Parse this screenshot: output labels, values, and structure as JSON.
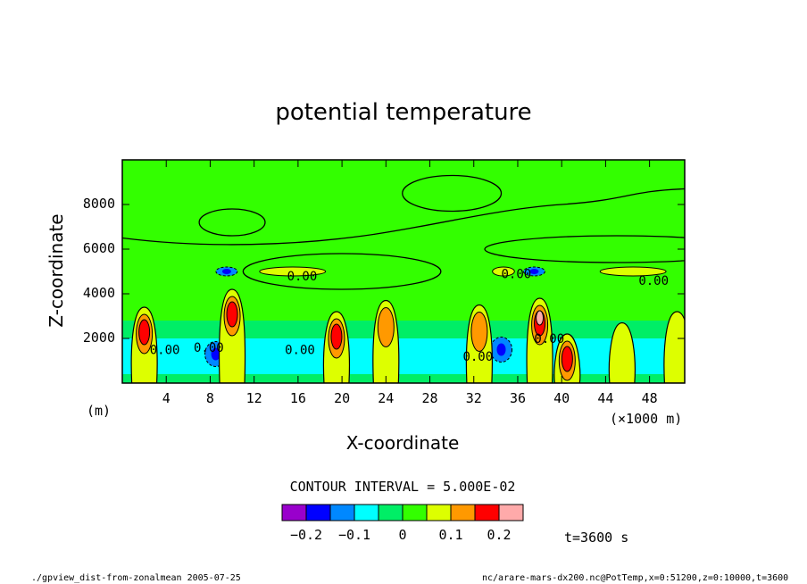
{
  "colors": {
    "background": "#ffffff",
    "field": "#33ff00",
    "contour": "#000000",
    "scale": [
      "#9900cc",
      "#0000ff",
      "#0088ff",
      "#00ffff",
      "#00ee66",
      "#33ff00",
      "#ddff00",
      "#ff9900",
      "#ff0000",
      "#ffaaaa"
    ]
  },
  "labels": {
    "title": "potential temperature",
    "xlabel": "X-coordinate",
    "ylabel": "Z-coordinate",
    "y_unit": "(m)",
    "x_unit": "(×1000 m)",
    "contour_interval": "CONTOUR INTERVAL = 5.000E-02",
    "time": "t=3600 s",
    "footer_left": "./gpview_dist-from-zonalmean  2005-07-25",
    "footer_right": "nc/arare-mars-dx200.nc@PotTemp,x=0:51200,z=0:10000,t=3600"
  },
  "chart_data": {
    "type": "heatmap",
    "title": "potential temperature",
    "xlabel": "X-coordinate",
    "ylabel": "Z-coordinate",
    "x_unit": "(×1000 m)",
    "y_unit": "(m)",
    "xlim": [
      0,
      51.2
    ],
    "ylim": [
      0,
      10000
    ],
    "x_ticks": [
      4,
      8,
      12,
      16,
      20,
      24,
      28,
      32,
      36,
      40,
      44,
      48
    ],
    "y_ticks": [
      2000,
      4000,
      6000,
      8000
    ],
    "contour_interval": 0.05,
    "contour_labels": [
      {
        "text": "0.00",
        "x": 2.5,
        "z": 1300
      },
      {
        "text": "0.00",
        "x": 6.5,
        "z": 1400
      },
      {
        "text": "0.00",
        "x": 14.8,
        "z": 1300
      },
      {
        "text": "0.00",
        "x": 15.0,
        "z": 4600
      },
      {
        "text": "0.00",
        "x": 31.0,
        "z": 1000
      },
      {
        "text": "0.00",
        "x": 34.5,
        "z": 4700
      },
      {
        "text": "0.00",
        "x": 37.5,
        "z": 1800
      },
      {
        "text": "0.00",
        "x": 47.0,
        "z": 4400
      }
    ],
    "colorbar": {
      "bins": [
        -0.25,
        -0.2,
        -0.15,
        -0.1,
        -0.05,
        0,
        0.05,
        0.1,
        0.15,
        0.2,
        0.25
      ],
      "tick_labels": [
        "−0.2",
        "−0.1",
        "0",
        "0.1",
        "0.2"
      ],
      "tick_values": [
        -0.2,
        -0.1,
        0,
        0.1,
        0.2
      ]
    },
    "warm_anomalies": [
      {
        "x": 2.0,
        "z_top": 3400,
        "peak": 0.22
      },
      {
        "x": 10.0,
        "z_top": 4200,
        "peak": 0.2
      },
      {
        "x": 19.5,
        "z_top": 3200,
        "peak": 0.22
      },
      {
        "x": 24.0,
        "z_top": 3700,
        "peak": 0.15
      },
      {
        "x": 32.5,
        "z_top": 3500,
        "peak": 0.15
      },
      {
        "x": 38.0,
        "z_top": 3800,
        "peak": 0.25
      },
      {
        "x": 40.5,
        "z_top": 2200,
        "peak": 0.2
      },
      {
        "x": 45.5,
        "z_top": 2700,
        "peak": 0.1
      },
      {
        "x": 50.5,
        "z_top": 3200,
        "peak": 0.1
      }
    ],
    "cool_anomalies": [
      {
        "x": 9.5,
        "z": 5000,
        "peak": -0.15
      },
      {
        "x": 37.5,
        "z": 5000,
        "peak": -0.15
      },
      {
        "x": 8.5,
        "z": 1300,
        "peak": -0.15
      },
      {
        "x": 34.5,
        "z": 1500,
        "peak": -0.15
      }
    ]
  }
}
